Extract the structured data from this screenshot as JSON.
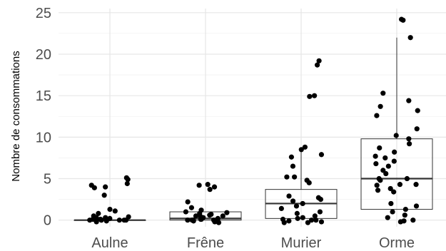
{
  "chart_data": {
    "type": "boxplot",
    "ylabel": "Nombre de consommations",
    "xlabel": "",
    "ylim": [
      -0.8,
      25.5
    ],
    "yticks": [
      0,
      5,
      10,
      15,
      20,
      25
    ],
    "grid": true,
    "categories": [
      "Aulne",
      "Frêne",
      "Murier",
      "Orme"
    ],
    "boxes": [
      {
        "category": "Aulne",
        "q1": 0,
        "median": 0,
        "q3": 0
      },
      {
        "category": "Frêne",
        "q1": 0,
        "median": 0.2,
        "q3": 1
      },
      {
        "category": "Murier",
        "q1": 0.2,
        "median": 2,
        "q3": 3.7,
        "whisker_high": 8.5
      },
      {
        "category": "Orme",
        "q1": 1.3,
        "median": 5,
        "q3": 9.8,
        "whisker_high": 22
      }
    ],
    "points": [
      {
        "category": "Aulne",
        "values": [
          5.1,
          4.9,
          4.2,
          4.0,
          4.4,
          3.9,
          3.0,
          1.3,
          1.1,
          0.8,
          0.5,
          0.4,
          0.3,
          0.3,
          0.2,
          0.1,
          0.1,
          0,
          0,
          0,
          0,
          0,
          0,
          0,
          -0.1,
          -0.2
        ]
      },
      {
        "category": "Frêne",
        "values": [
          4.3,
          4.2,
          4.0,
          3.7,
          2.2,
          1.5,
          1.2,
          1.0,
          0.9,
          0.8,
          0.7,
          0.6,
          0.5,
          0.5,
          0.4,
          0.3,
          0.3,
          0.2,
          0.1,
          0.1,
          0,
          0,
          0,
          0,
          -0.1,
          -0.2,
          -0.3
        ]
      },
      {
        "category": "Murier",
        "values": [
          19.2,
          18.7,
          15.0,
          14.9,
          8.8,
          8.5,
          7.9,
          7.6,
          6.5,
          5.2,
          5.2,
          4.8,
          4.5,
          2.9,
          2.7,
          2.5,
          2.3,
          2.0,
          1.7,
          1.4,
          1.0,
          0.8,
          0.5,
          0.3,
          0.2,
          0.1,
          0,
          0,
          -0.1,
          -0.2,
          -0.3,
          -0.3
        ]
      },
      {
        "category": "Orme",
        "values": [
          24.1,
          24.2,
          22.0,
          15.3,
          14.4,
          13.7,
          13.2,
          12.6,
          11.0,
          10.2,
          9.8,
          9.2,
          8.7,
          8.2,
          7.7,
          7.5,
          7.1,
          6.8,
          6.5,
          6.0,
          5.6,
          5.0,
          5.0,
          4.8,
          4.3,
          4.3,
          4.2,
          3.8,
          3.6,
          3.4,
          2.0,
          1.7,
          1.3,
          1.0,
          0.6,
          0.3,
          0,
          -0.1,
          -0.2
        ]
      }
    ]
  }
}
